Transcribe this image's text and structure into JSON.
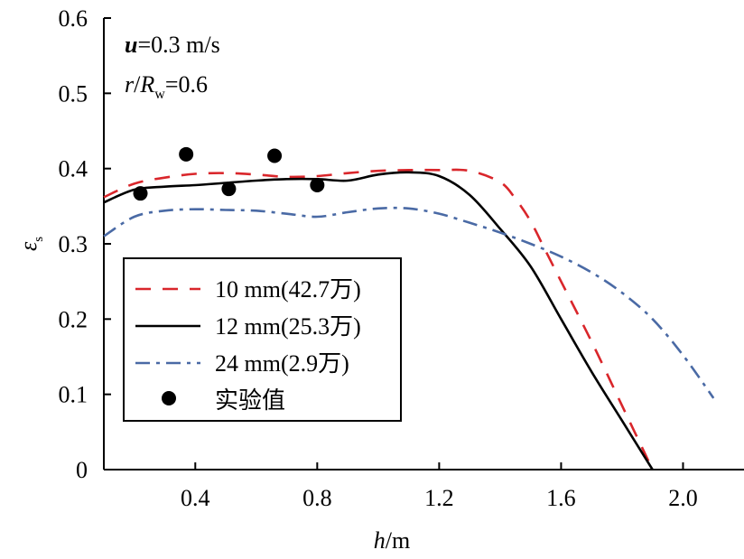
{
  "chart_data": {
    "type": "line",
    "xlabel": "h/m",
    "xlabel_var": "h",
    "xlabel_unit": "/m",
    "ylabel_main": "ε",
    "ylabel_sub": "s",
    "xlim": [
      0.1,
      2.2
    ],
    "ylim": [
      0,
      0.6
    ],
    "x_ticks": [
      0.4,
      0.8,
      1.2,
      1.6,
      2.0
    ],
    "x_tick_labels": [
      "0.4",
      "0.8",
      "1.2",
      "1.6",
      "2.0"
    ],
    "y_ticks": [
      0,
      0.1,
      0.2,
      0.3,
      0.4,
      0.5,
      0.6
    ],
    "y_tick_labels": [
      "0",
      "0.1",
      "0.2",
      "0.3",
      "0.4",
      "0.5",
      "0.6"
    ],
    "grid": false,
    "legend_position": "lower-left",
    "annotations": {
      "u_var": "u",
      "u_value": "=0.3 m/s",
      "r_var": "r",
      "r_slash": "/",
      "R_var": "R",
      "R_sub": "w",
      "r_value": "=0.6"
    },
    "series": [
      {
        "name": "10 mm(42.7万)",
        "style": "dashed",
        "color": "#d9262b",
        "x": [
          0.1,
          0.2,
          0.3,
          0.4,
          0.5,
          0.6,
          0.7,
          0.8,
          0.9,
          1.0,
          1.1,
          1.2,
          1.3,
          1.4,
          1.45,
          1.5,
          1.55,
          1.6,
          1.7,
          1.8,
          1.9
        ],
        "y": [
          0.362,
          0.38,
          0.388,
          0.393,
          0.394,
          0.392,
          0.389,
          0.39,
          0.394,
          0.397,
          0.398,
          0.398,
          0.397,
          0.382,
          0.36,
          0.33,
          0.29,
          0.25,
          0.17,
          0.085,
          0.0
        ]
      },
      {
        "name": "12 mm(25.3万)",
        "style": "solid",
        "color": "#000000",
        "x": [
          0.1,
          0.2,
          0.3,
          0.4,
          0.5,
          0.6,
          0.7,
          0.8,
          0.9,
          1.0,
          1.1,
          1.2,
          1.3,
          1.4,
          1.5,
          1.6,
          1.7,
          1.8,
          1.9
        ],
        "y": [
          0.355,
          0.372,
          0.376,
          0.378,
          0.381,
          0.384,
          0.386,
          0.386,
          0.384,
          0.392,
          0.395,
          0.39,
          0.365,
          0.32,
          0.27,
          0.2,
          0.13,
          0.065,
          0.0
        ]
      },
      {
        "name": "24 mm(2.9万)",
        "style": "dashdot",
        "color": "#4a6aa5",
        "x": [
          0.1,
          0.2,
          0.3,
          0.4,
          0.5,
          0.6,
          0.7,
          0.8,
          0.9,
          1.0,
          1.1,
          1.2,
          1.3,
          1.4,
          1.5,
          1.6,
          1.7,
          1.8,
          1.9,
          2.0,
          2.1
        ],
        "y": [
          0.31,
          0.336,
          0.344,
          0.346,
          0.345,
          0.344,
          0.34,
          0.336,
          0.342,
          0.347,
          0.347,
          0.34,
          0.328,
          0.315,
          0.3,
          0.283,
          0.262,
          0.235,
          0.2,
          0.152,
          0.095
        ]
      }
    ],
    "scatter": {
      "name": "实验值",
      "color": "#000000",
      "x": [
        0.22,
        0.37,
        0.51,
        0.66,
        0.8
      ],
      "y": [
        0.367,
        0.419,
        0.373,
        0.417,
        0.378
      ]
    }
  }
}
